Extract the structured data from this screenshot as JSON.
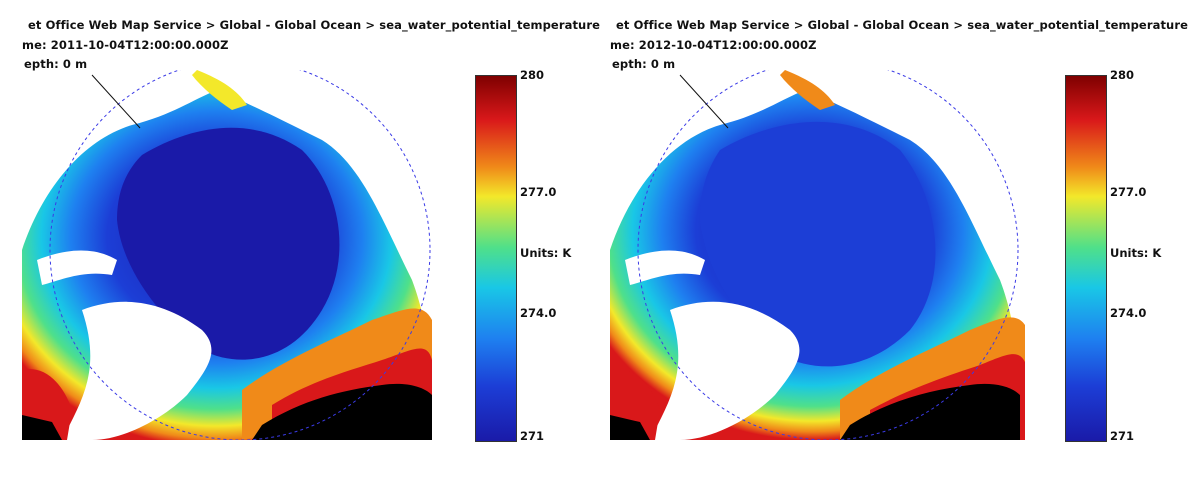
{
  "panels": [
    {
      "service_line": "et Office Web Map Service > Global - Global Ocean > sea_water_potential_temperature",
      "time_line": "me: 2011-10-04T12:00:00.000Z",
      "depth_line": "epth: 0 m",
      "colorbar": {
        "max": "280",
        "upper_mid": "277.0",
        "units": "Units: K",
        "lower_mid": "274.0",
        "min": "271"
      }
    },
    {
      "service_line": "et Office Web Map Service > Global - Global Ocean > sea_water_potential_temperature",
      "time_line": "me: 2012-10-04T12:00:00.000Z",
      "depth_line": "epth: 0 m",
      "colorbar": {
        "max": "280",
        "upper_mid": "277.0",
        "units": "Units: K",
        "lower_mid": "274.0",
        "min": "271"
      }
    }
  ],
  "colors": {
    "deep_cold": "#1a1aa8",
    "cold": "#1c3ed6",
    "cyan": "#19c7e6",
    "green": "#4fe08a",
    "yellow": "#f3e82a",
    "orange": "#f08a19",
    "red": "#d9181a",
    "land": "#000000",
    "ice_land": "#ffffff",
    "graticule": "#3a3ae6"
  }
}
